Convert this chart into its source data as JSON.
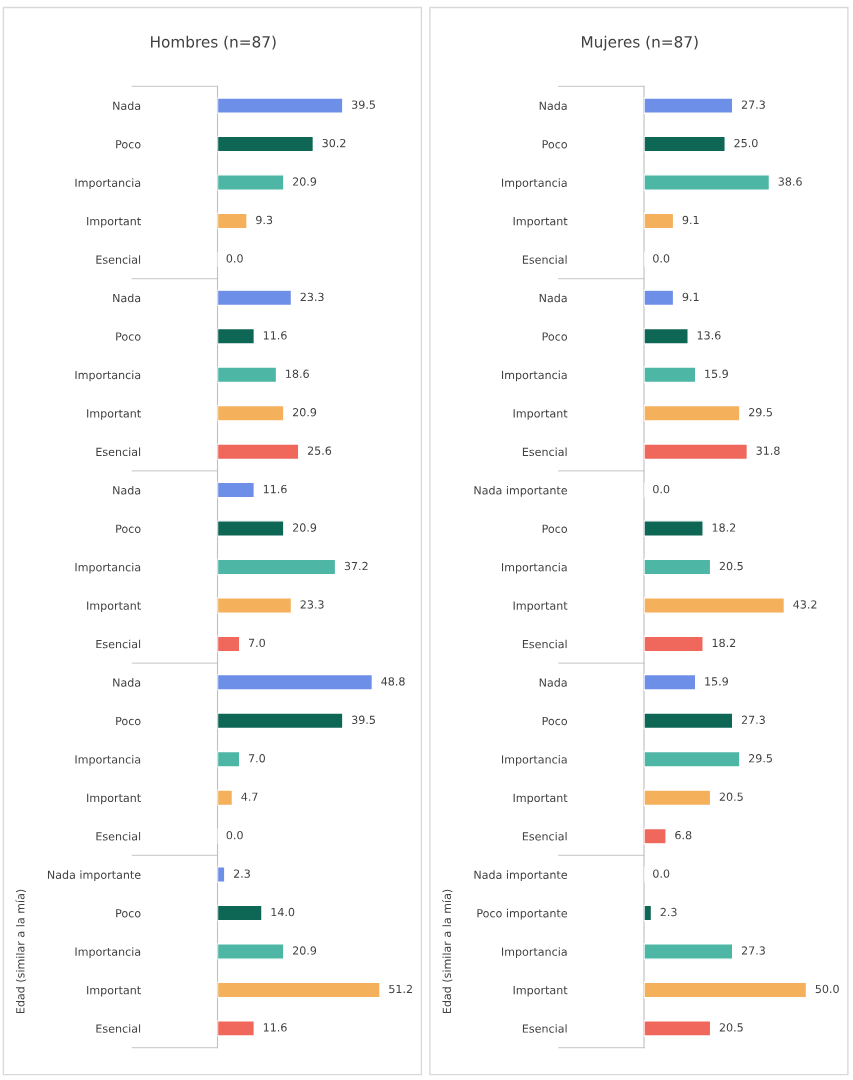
{
  "chart_data": [
    {
      "type": "bar",
      "orientation": "horizontal",
      "title": "Hombres (n=87)",
      "categories": [
        "Nada",
        "Poco",
        "Importancia",
        "Important",
        "Esencial",
        "Nada",
        "Poco",
        "Importancia",
        "Important",
        "Esencial",
        "Nada",
        "Poco",
        "Importancia",
        "Important",
        "Esencial",
        "Nada",
        "Poco",
        "Importancia",
        "Important",
        "Esencial",
        "Nada importante",
        "Poco",
        "Importancia",
        "Important",
        "Esencial"
      ],
      "values": [
        39.5,
        30.2,
        20.9,
        9.3,
        0.0,
        23.3,
        11.6,
        18.6,
        20.9,
        25.6,
        11.6,
        20.9,
        37.2,
        23.3,
        7.0,
        48.8,
        39.5,
        7.0,
        4.7,
        0.0,
        2.3,
        14.0,
        20.9,
        51.2,
        11.6
      ],
      "value_labels": [
        "39.5",
        "30.2",
        "20.9",
        "9.3",
        "0.0",
        "23.3",
        "11.6",
        "18.6",
        "20.9",
        "25.6",
        "11.6",
        "20.9",
        "37.2",
        "23.3",
        "7.0",
        "48.8",
        "39.5",
        "7.0",
        "4.7",
        "0.0",
        "2.3",
        "14.0",
        "20.9",
        "51.2",
        "11.6"
      ],
      "colors": [
        "#6d8fe8",
        "#0e6655",
        "#4db6a4",
        "#f5b05c",
        null,
        "#6d8fe8",
        "#0e6655",
        "#4db6a4",
        "#f5b05c",
        "#f0675c",
        "#6d8fe8",
        "#0e6655",
        "#4db6a4",
        "#f5b05c",
        "#f0675c",
        "#6d8fe8",
        "#0e6655",
        "#4db6a4",
        "#f5b05c",
        null,
        "#6d8fe8",
        "#0e6655",
        "#4db6a4",
        "#f5b05c",
        "#f0675c"
      ],
      "legend": false,
      "tick_labels": "y",
      "annotations": [
        "Edad (similar a la mía)"
      ]
    },
    {
      "type": "bar",
      "orientation": "horizontal",
      "title": "Mujeres (n=87)",
      "categories": [
        "Nada",
        "Poco",
        "Importancia",
        "Important",
        "Esencial",
        "Nada",
        "Poco",
        "Importancia",
        "Important",
        "Esencial",
        "Nada importante",
        "Poco",
        "Importancia",
        "Important",
        "Esencial",
        "Nada",
        "Poco",
        "Importancia",
        "Important",
        "Esencial",
        "Nada importante",
        "Poco importante",
        "Importancia",
        "Important",
        "Esencial"
      ],
      "values": [
        27.3,
        25.0,
        38.6,
        9.1,
        0.0,
        9.1,
        13.6,
        15.9,
        29.5,
        31.8,
        0.0,
        18.2,
        20.5,
        43.2,
        18.2,
        15.9,
        27.3,
        29.5,
        20.5,
        6.8,
        0.0,
        2.3,
        27.3,
        50.0,
        20.5
      ],
      "value_labels": [
        "27.3",
        "25.0",
        "38.6",
        "9.1",
        "0.0",
        "9.1",
        "13.6",
        "15.9",
        "29.5",
        "31.8",
        "0.0",
        "18.2",
        "20.5",
        "43.2",
        "18.2",
        "15.9",
        "27.3",
        "29.5",
        "20.5",
        "6.8",
        "0.0",
        "2.3",
        "27.3",
        "50.0",
        "20.5"
      ],
      "colors": [
        "#6d8fe8",
        "#0e6655",
        "#4db6a4",
        "#f5b05c",
        null,
        "#6d8fe8",
        "#0e6655",
        "#4db6a4",
        "#f5b05c",
        "#f0675c",
        null,
        "#0e6655",
        "#4db6a4",
        "#f5b05c",
        "#f0675c",
        "#6d8fe8",
        "#0e6655",
        "#4db6a4",
        "#f5b05c",
        "#f0675c",
        null,
        "#0e6655",
        "#4db6a4",
        "#f5b05c",
        "#f0675c"
      ],
      "legend": false,
      "tick_labels": "y",
      "annotations": [
        "Edad (similar a la mía)"
      ]
    }
  ]
}
